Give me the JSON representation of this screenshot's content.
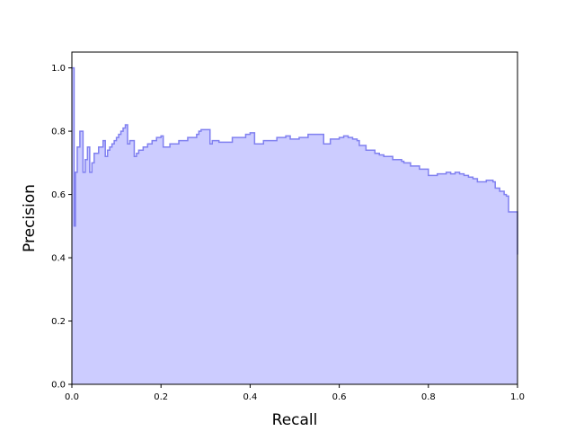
{
  "chart_data": {
    "type": "area",
    "title": "",
    "xlabel": "Recall",
    "ylabel": "Precision",
    "xlim": [
      0.0,
      1.0
    ],
    "ylim": [
      0.0,
      1.05
    ],
    "grid": false,
    "step": "post",
    "x_ticks": [
      0.0,
      0.2,
      0.4,
      0.6,
      0.8,
      1.0
    ],
    "x_tick_labels": [
      "0.0",
      "0.2",
      "0.4",
      "0.6",
      "0.8",
      "1.0"
    ],
    "y_ticks": [
      0.0,
      0.2,
      0.4,
      0.6,
      0.8,
      1.0
    ],
    "y_tick_labels": [
      "0.0",
      "0.2",
      "0.4",
      "0.6",
      "0.8",
      "1.0"
    ],
    "colors": {
      "fill": "#ccccff",
      "line": "#8080f0"
    },
    "series": [
      {
        "recall": [
          0.0,
          0.005,
          0.008,
          0.012,
          0.018,
          0.025,
          0.03,
          0.035,
          0.04,
          0.045,
          0.05,
          0.06,
          0.07,
          0.075,
          0.08,
          0.085,
          0.09,
          0.095,
          0.1,
          0.105,
          0.11,
          0.115,
          0.12,
          0.125,
          0.13,
          0.14,
          0.145,
          0.15,
          0.16,
          0.17,
          0.18,
          0.19,
          0.2,
          0.205,
          0.22,
          0.24,
          0.26,
          0.28,
          0.285,
          0.29,
          0.31,
          0.315,
          0.33,
          0.36,
          0.39,
          0.4,
          0.41,
          0.43,
          0.46,
          0.48,
          0.49,
          0.51,
          0.53,
          0.56,
          0.565,
          0.58,
          0.6,
          0.61,
          0.62,
          0.63,
          0.64,
          0.645,
          0.66,
          0.68,
          0.69,
          0.7,
          0.72,
          0.74,
          0.745,
          0.76,
          0.78,
          0.8,
          0.82,
          0.84,
          0.85,
          0.86,
          0.87,
          0.88,
          0.89,
          0.9,
          0.91,
          0.93,
          0.94,
          0.945,
          0.95,
          0.96,
          0.97,
          0.975,
          0.98,
          0.99,
          1.0
        ],
        "precision": [
          1.0,
          0.5,
          0.67,
          0.75,
          0.8,
          0.67,
          0.71,
          0.75,
          0.67,
          0.7,
          0.73,
          0.75,
          0.77,
          0.72,
          0.74,
          0.75,
          0.76,
          0.77,
          0.78,
          0.79,
          0.8,
          0.81,
          0.82,
          0.76,
          0.77,
          0.72,
          0.73,
          0.74,
          0.75,
          0.76,
          0.77,
          0.78,
          0.785,
          0.75,
          0.76,
          0.77,
          0.78,
          0.79,
          0.8,
          0.805,
          0.76,
          0.77,
          0.765,
          0.78,
          0.79,
          0.795,
          0.76,
          0.77,
          0.78,
          0.785,
          0.775,
          0.78,
          0.79,
          0.79,
          0.76,
          0.775,
          0.78,
          0.785,
          0.78,
          0.775,
          0.77,
          0.755,
          0.74,
          0.73,
          0.725,
          0.72,
          0.71,
          0.705,
          0.7,
          0.69,
          0.68,
          0.66,
          0.665,
          0.67,
          0.665,
          0.67,
          0.665,
          0.66,
          0.655,
          0.65,
          0.64,
          0.645,
          0.645,
          0.64,
          0.62,
          0.61,
          0.6,
          0.595,
          0.545,
          0.545,
          0.51
        ]
      }
    ]
  }
}
